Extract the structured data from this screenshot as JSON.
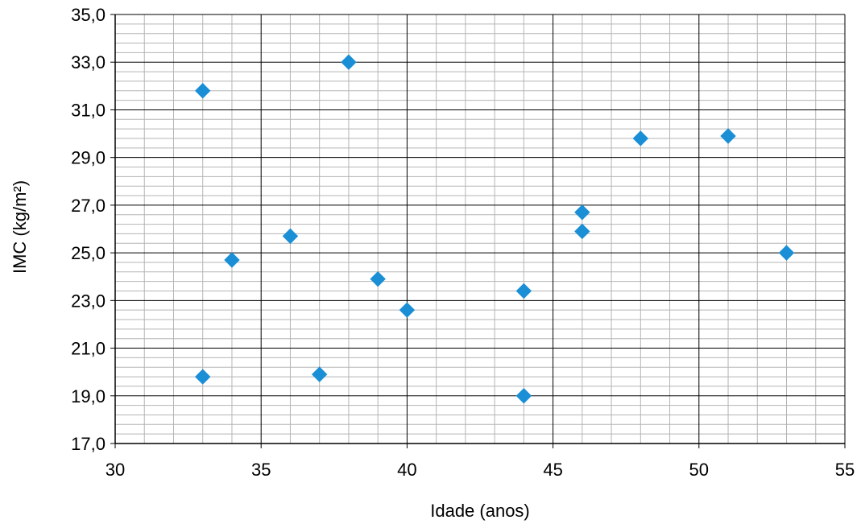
{
  "chart_data": {
    "type": "scatter",
    "title": "",
    "xlabel": "Idade (anos)",
    "ylabel": "IMC (kg/m²)",
    "xlim": [
      30,
      55
    ],
    "ylim": [
      17,
      35
    ],
    "x_ticks": [
      "30",
      "35",
      "40",
      "45",
      "50",
      "55"
    ],
    "y_ticks": [
      "17,0",
      "19,0",
      "21,0",
      "23,0",
      "25,0",
      "27,0",
      "29,0",
      "31,0",
      "33,0",
      "35,0"
    ],
    "major_grid": true,
    "minor_grid": true,
    "marker": "diamond",
    "marker_color": "#1a8fd6",
    "series": [
      {
        "points": [
          {
            "x": 33,
            "y": 31.8
          },
          {
            "x": 38,
            "y": 33.0
          },
          {
            "x": 34,
            "y": 24.7
          },
          {
            "x": 36,
            "y": 25.7
          },
          {
            "x": 39,
            "y": 23.9
          },
          {
            "x": 40,
            "y": 22.6
          },
          {
            "x": 33,
            "y": 19.8
          },
          {
            "x": 37,
            "y": 19.9
          },
          {
            "x": 44,
            "y": 23.4
          },
          {
            "x": 44,
            "y": 19.0
          },
          {
            "x": 46,
            "y": 26.7
          },
          {
            "x": 46,
            "y": 25.9
          },
          {
            "x": 48,
            "y": 29.8
          },
          {
            "x": 51,
            "y": 29.9
          },
          {
            "x": 53,
            "y": 25.0
          }
        ]
      }
    ]
  }
}
